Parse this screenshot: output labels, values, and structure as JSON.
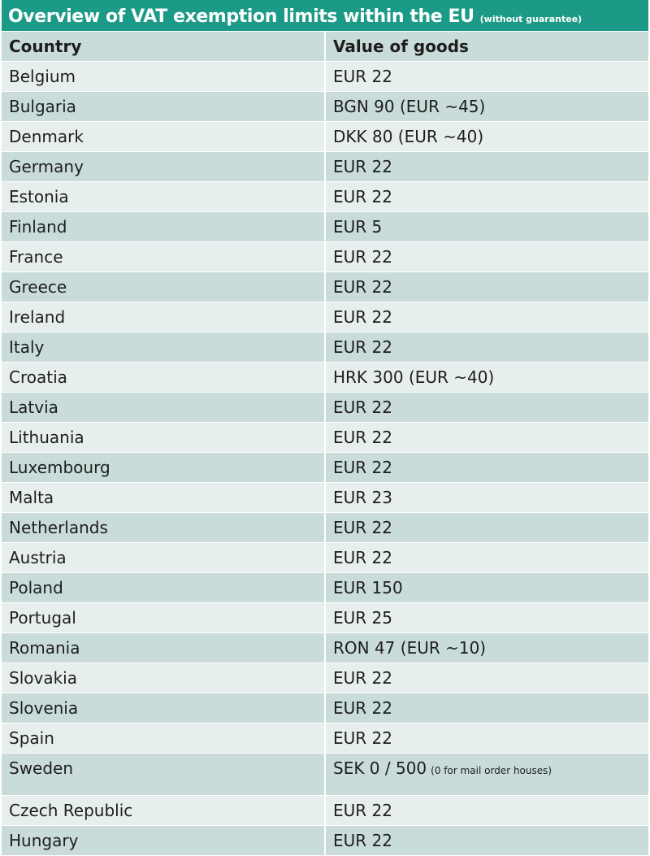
{
  "title": "Overview of VAT exemption limits within the EU",
  "title_note": "(without guarantee)",
  "columns": [
    "Country",
    "Value of goods"
  ],
  "rows": [
    {
      "country": "Belgium",
      "value": "EUR 22",
      "note": ""
    },
    {
      "country": "Bulgaria",
      "value": "BGN 90 (EUR ~45)",
      "note": ""
    },
    {
      "country": "Denmark",
      "value": "DKK 80 (EUR ~40)",
      "note": ""
    },
    {
      "country": "Germany",
      "value": "EUR 22",
      "note": ""
    },
    {
      "country": "Estonia",
      "value": "EUR 22",
      "note": ""
    },
    {
      "country": "Finland",
      "value": "EUR 5",
      "note": ""
    },
    {
      "country": "France",
      "value": "EUR 22",
      "note": ""
    },
    {
      "country": "Greece",
      "value": "EUR 22",
      "note": ""
    },
    {
      "country": "Ireland",
      "value": "EUR 22",
      "note": ""
    },
    {
      "country": "Italy",
      "value": "EUR 22",
      "note": ""
    },
    {
      "country": "Croatia",
      "value": "HRK 300 (EUR ~40)",
      "note": ""
    },
    {
      "country": "Latvia",
      "value": "EUR 22",
      "note": ""
    },
    {
      "country": "Lithuania",
      "value": "EUR 22",
      "note": ""
    },
    {
      "country": "Luxembourg",
      "value": "EUR 22",
      "note": ""
    },
    {
      "country": "Malta",
      "value": "EUR 23",
      "note": ""
    },
    {
      "country": "Netherlands",
      "value": "EUR 22",
      "note": ""
    },
    {
      "country": "Austria",
      "value": "EUR 22",
      "note": ""
    },
    {
      "country": "Poland",
      "value": "EUR 150",
      "note": ""
    },
    {
      "country": "Portugal",
      "value": "EUR 25",
      "note": ""
    },
    {
      "country": "Romania",
      "value": "RON 47 (EUR ~10)",
      "note": ""
    },
    {
      "country": "Slovakia",
      "value": "EUR 22",
      "note": ""
    },
    {
      "country": "Slovenia",
      "value": "EUR 22",
      "note": ""
    },
    {
      "country": "Spain",
      "value": "EUR 22",
      "note": ""
    },
    {
      "country": "Sweden",
      "value": "SEK 0 / 500",
      "note": "(0 for mail order houses)"
    },
    {
      "country": "Czech Republic",
      "value": "EUR 22",
      "note": ""
    },
    {
      "country": "Hungary",
      "value": "EUR 22",
      "note": ""
    }
  ],
  "colors": {
    "title_bar": "#1b9a87",
    "row_light": "#e7efee",
    "row_dark": "#c9dcd9"
  }
}
